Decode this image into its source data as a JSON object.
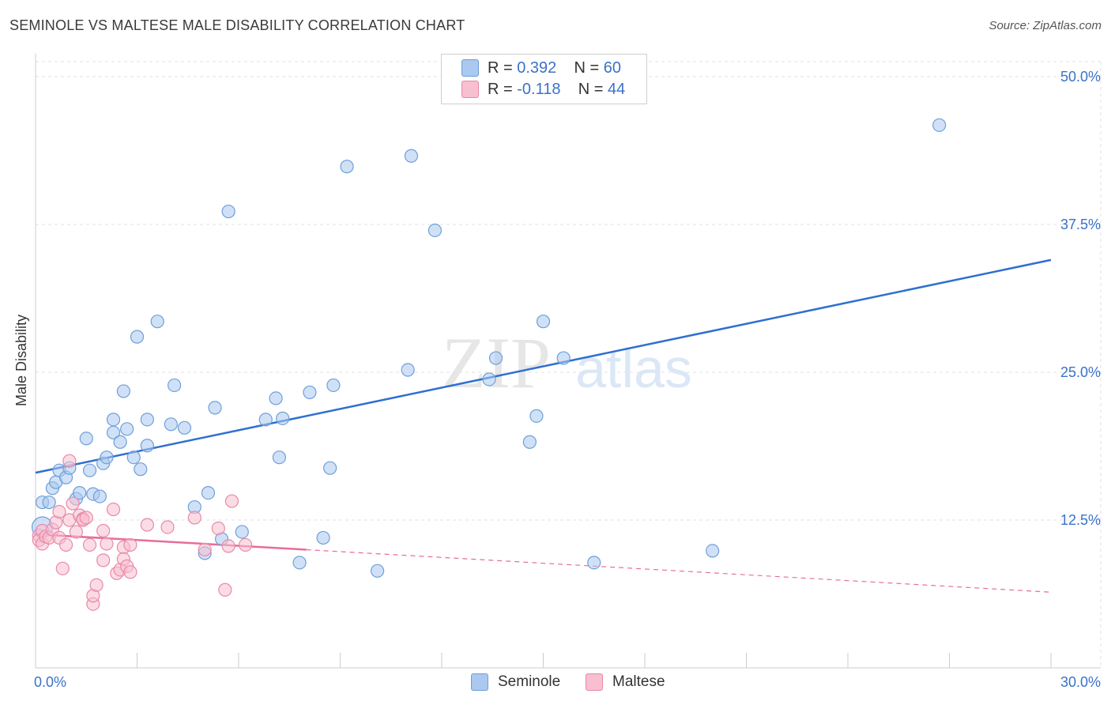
{
  "title": "SEMINOLE VS MALTESE MALE DISABILITY CORRELATION CHART",
  "source": "Source: ZipAtlas.com",
  "watermark": {
    "zip": "ZIP",
    "atlas": "atlas"
  },
  "legend_top": {
    "row1": {
      "r_label": "R = ",
      "r_value": "0.392",
      "n_label": "N = ",
      "n_value": "60"
    },
    "row2": {
      "r_label": "R = ",
      "r_value": "-0.118",
      "n_label": "N = ",
      "n_value": "44"
    }
  },
  "legend_bottom": {
    "seminole": "Seminole",
    "maltese": "Maltese"
  },
  "colors": {
    "seminole_fill": "#aac8f0",
    "seminole_stroke": "#6e9fd8",
    "seminole_line": "#2f6fd0",
    "maltese_fill": "#f7bfd0",
    "maltese_stroke": "#e889a8",
    "maltese_line": "#e86d9a",
    "tick_label": "#3a72c8",
    "grid": "#e2e2e2"
  },
  "chart_data": {
    "type": "scatter",
    "title": "SEMINOLE VS MALTESE MALE DISABILITY CORRELATION CHART",
    "xlabel": "",
    "ylabel": "Male Disability",
    "xlim": [
      0,
      30
    ],
    "ylim": [
      0,
      50
    ],
    "x_tick_labels": [
      "0.0%",
      "30.0%"
    ],
    "y_ticks": [
      12.5,
      25.0,
      37.5,
      50.0
    ],
    "y_tick_labels": [
      "12.5%",
      "25.0%",
      "37.5%",
      "50.0%"
    ],
    "series": [
      {
        "name": "Seminole",
        "R": 0.392,
        "N": 60,
        "trend": {
          "x": [
            0,
            30
          ],
          "y": [
            16.5,
            34.5
          ],
          "dashed_from": null
        },
        "points": [
          [
            0.2,
            11.9
          ],
          [
            0.2,
            14.0
          ],
          [
            0.4,
            14.0
          ],
          [
            0.5,
            15.2
          ],
          [
            0.6,
            15.7
          ],
          [
            0.7,
            16.7
          ],
          [
            0.9,
            16.1
          ],
          [
            1.0,
            16.9
          ],
          [
            1.2,
            14.3
          ],
          [
            1.3,
            14.8
          ],
          [
            1.5,
            19.4
          ],
          [
            1.6,
            16.7
          ],
          [
            1.7,
            14.7
          ],
          [
            1.9,
            14.5
          ],
          [
            2.0,
            17.3
          ],
          [
            2.1,
            17.8
          ],
          [
            2.3,
            19.9
          ],
          [
            2.3,
            21.0
          ],
          [
            2.5,
            19.1
          ],
          [
            2.6,
            23.4
          ],
          [
            2.7,
            20.2
          ],
          [
            2.9,
            17.8
          ],
          [
            3.0,
            28.0
          ],
          [
            3.1,
            16.8
          ],
          [
            3.3,
            21.0
          ],
          [
            3.3,
            18.8
          ],
          [
            3.6,
            29.3
          ],
          [
            4.0,
            20.6
          ],
          [
            4.1,
            23.9
          ],
          [
            4.4,
            20.3
          ],
          [
            4.7,
            13.6
          ],
          [
            5.0,
            9.7
          ],
          [
            5.1,
            14.8
          ],
          [
            5.3,
            22.0
          ],
          [
            5.5,
            10.9
          ],
          [
            5.7,
            38.6
          ],
          [
            6.1,
            11.5
          ],
          [
            6.8,
            21.0
          ],
          [
            7.1,
            22.8
          ],
          [
            7.2,
            17.8
          ],
          [
            7.3,
            21.1
          ],
          [
            7.8,
            8.9
          ],
          [
            8.1,
            23.3
          ],
          [
            8.5,
            11.0
          ],
          [
            8.7,
            16.9
          ],
          [
            8.8,
            23.9
          ],
          [
            9.2,
            42.4
          ],
          [
            10.1,
            8.2
          ],
          [
            11.0,
            25.2
          ],
          [
            11.1,
            43.3
          ],
          [
            11.8,
            37.0
          ],
          [
            13.4,
            24.4
          ],
          [
            13.6,
            26.2
          ],
          [
            14.6,
            19.1
          ],
          [
            14.8,
            21.3
          ],
          [
            15.0,
            29.3
          ],
          [
            15.6,
            26.2
          ],
          [
            16.5,
            8.9
          ],
          [
            20.0,
            9.9
          ],
          [
            26.7,
            45.9
          ]
        ]
      },
      {
        "name": "Maltese",
        "R": -0.118,
        "N": 44,
        "trend": {
          "x": [
            0,
            30
          ],
          "y": [
            11.3,
            6.4
          ],
          "dashed_from": 8.0
        },
        "points": [
          [
            0.1,
            11.2
          ],
          [
            0.1,
            10.8
          ],
          [
            0.2,
            11.6
          ],
          [
            0.2,
            10.5
          ],
          [
            0.3,
            11.1
          ],
          [
            0.4,
            11.0
          ],
          [
            0.5,
            11.7
          ],
          [
            0.6,
            12.3
          ],
          [
            0.7,
            13.2
          ],
          [
            0.7,
            11.0
          ],
          [
            0.8,
            8.4
          ],
          [
            0.9,
            10.4
          ],
          [
            1.0,
            12.5
          ],
          [
            1.0,
            17.5
          ],
          [
            1.1,
            13.9
          ],
          [
            1.2,
            11.5
          ],
          [
            1.3,
            12.9
          ],
          [
            1.4,
            12.6
          ],
          [
            1.4,
            12.5
          ],
          [
            1.5,
            12.7
          ],
          [
            1.6,
            10.4
          ],
          [
            1.7,
            5.4
          ],
          [
            1.7,
            6.1
          ],
          [
            1.8,
            7.0
          ],
          [
            2.0,
            9.1
          ],
          [
            2.0,
            11.6
          ],
          [
            2.1,
            10.5
          ],
          [
            2.3,
            13.4
          ],
          [
            2.4,
            8.0
          ],
          [
            2.5,
            8.3
          ],
          [
            2.6,
            10.2
          ],
          [
            2.6,
            9.2
          ],
          [
            2.7,
            8.6
          ],
          [
            2.8,
            10.4
          ],
          [
            2.8,
            8.1
          ],
          [
            3.3,
            12.1
          ],
          [
            3.9,
            11.9
          ],
          [
            4.7,
            12.7
          ],
          [
            5.0,
            10.0
          ],
          [
            5.4,
            11.8
          ],
          [
            5.6,
            6.6
          ],
          [
            5.7,
            10.3
          ],
          [
            5.8,
            14.1
          ],
          [
            6.2,
            10.4
          ]
        ]
      }
    ]
  }
}
